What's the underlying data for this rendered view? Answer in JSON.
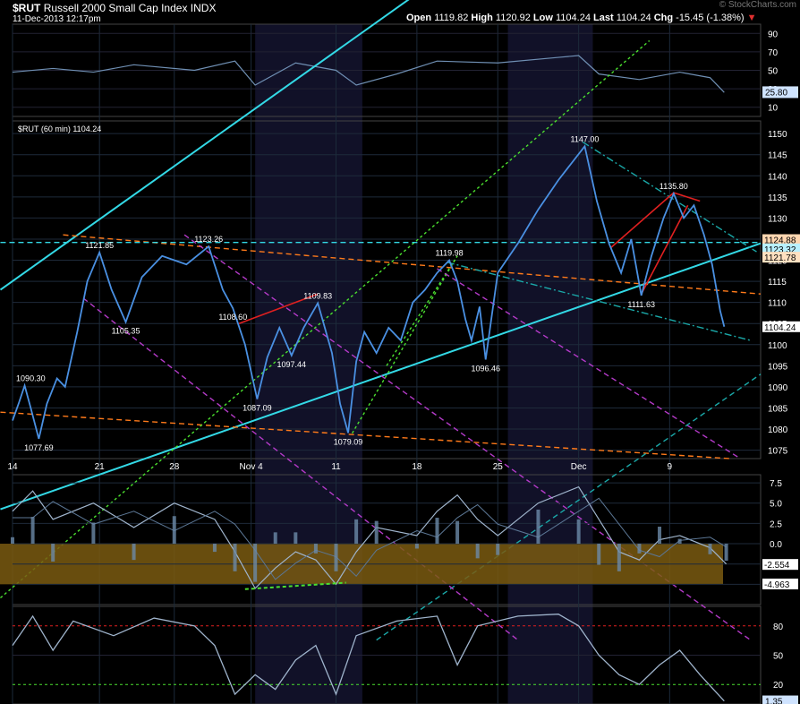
{
  "header": {
    "symbol": "$RUT",
    "name": "Russell 2000 Small Cap Index",
    "exchange": "INDX",
    "datetime": "11-Dec-2013 12:17pm",
    "open_label": "Open",
    "open": "1119.82",
    "high_label": "High",
    "high": "1120.92",
    "low_label": "Low",
    "low": "1104.24",
    "last_label": "Last",
    "last": "1104.24",
    "chg_label": "Chg",
    "chg": "-15.45 (-1.38%)",
    "chg_arrow": "▼",
    "watermark": "© StockCharts.com"
  },
  "colors": {
    "price": "#4a90e2",
    "indicator": "#6f8fb3",
    "cyan": "#33d9e6",
    "orange": "#ff7a1a",
    "green_dotted": "#4be02f",
    "magenta": "#b43ac8",
    "red": "#e02020",
    "teal": "#1aa8a8",
    "overbought_fill": "#7a5a10",
    "shade": "#111128"
  },
  "chart_data": [
    {
      "panel": "top-indicator",
      "type": "line",
      "y_ticks": [
        90,
        70,
        50,
        30,
        10
      ],
      "ylim": [
        0,
        100
      ],
      "last_value": "25.80"
    },
    {
      "panel": "price",
      "type": "line",
      "legend": "$RUT (60 min) 1104.24",
      "x_ticks": [
        "14",
        "21",
        "28",
        "Nov 4",
        "11",
        "18",
        "25",
        "Dec",
        "9"
      ],
      "y_ticks": [
        1150,
        1145,
        1140,
        1135,
        1130,
        1125,
        1120,
        1115,
        1110,
        1105,
        1100,
        1095,
        1090,
        1085,
        1080,
        1075
      ],
      "ylim": [
        1073,
        1153
      ],
      "price_series": [
        [
          0,
          1082
        ],
        [
          0.3,
          1086
        ],
        [
          0.6,
          1090.3
        ],
        [
          0.9,
          1085
        ],
        [
          1.3,
          1077.69
        ],
        [
          1.7,
          1086
        ],
        [
          2.2,
          1092
        ],
        [
          2.6,
          1090
        ],
        [
          3.2,
          1103
        ],
        [
          3.7,
          1115
        ],
        [
          4.3,
          1121.85
        ],
        [
          4.9,
          1113
        ],
        [
          5.6,
          1105.35
        ],
        [
          6.4,
          1116
        ],
        [
          7.4,
          1121
        ],
        [
          8.6,
          1119
        ],
        [
          9.7,
          1123.26
        ],
        [
          10.4,
          1113
        ],
        [
          10.9,
          1108.6
        ],
        [
          11.5,
          1100
        ],
        [
          12.1,
          1087.09
        ],
        [
          12.6,
          1097
        ],
        [
          13.2,
          1104
        ],
        [
          13.8,
          1097.44
        ],
        [
          14.4,
          1104
        ],
        [
          15.1,
          1109.83
        ],
        [
          15.8,
          1098
        ],
        [
          16.2,
          1086
        ],
        [
          16.6,
          1079.09
        ],
        [
          17.0,
          1096
        ],
        [
          17.4,
          1103
        ],
        [
          18.0,
          1098
        ],
        [
          18.6,
          1104
        ],
        [
          19.2,
          1101
        ],
        [
          19.8,
          1110
        ],
        [
          20.4,
          1113
        ],
        [
          21.0,
          1117
        ],
        [
          21.6,
          1119.98
        ],
        [
          22.0,
          1115
        ],
        [
          22.4,
          1106
        ],
        [
          22.7,
          1101
        ],
        [
          23.1,
          1109
        ],
        [
          23.4,
          1096.46
        ],
        [
          24.0,
          1117
        ],
        [
          25.0,
          1124
        ],
        [
          26.0,
          1132
        ],
        [
          27.0,
          1139
        ],
        [
          28.3,
          1147.0
        ],
        [
          28.9,
          1134
        ],
        [
          29.5,
          1124
        ],
        [
          30.1,
          1117
        ],
        [
          30.6,
          1125
        ],
        [
          31.1,
          1111.63
        ],
        [
          31.6,
          1121
        ],
        [
          32.2,
          1130
        ],
        [
          32.7,
          1135.8
        ],
        [
          33.2,
          1130
        ],
        [
          33.7,
          1133
        ],
        [
          34.2,
          1126
        ],
        [
          34.6,
          1119
        ],
        [
          35.0,
          1108
        ],
        [
          35.2,
          1104.24
        ]
      ],
      "labels": [
        {
          "x": 0.9,
          "y": 1090.3,
          "text": "1090.30"
        },
        {
          "x": 1.3,
          "y": 1077.69,
          "text": "1077.69"
        },
        {
          "x": 4.3,
          "y": 1121.85,
          "text": "1121.85"
        },
        {
          "x": 5.6,
          "y": 1105.35,
          "text": "1105.35"
        },
        {
          "x": 9.7,
          "y": 1123.26,
          "text": "1123.26"
        },
        {
          "x": 10.9,
          "y": 1108.6,
          "text": "1108.60"
        },
        {
          "x": 12.1,
          "y": 1087.09,
          "text": "1087.09"
        },
        {
          "x": 13.8,
          "y": 1097.44,
          "text": "1097.44"
        },
        {
          "x": 15.1,
          "y": 1109.83,
          "text": "1109.83"
        },
        {
          "x": 16.6,
          "y": 1079.09,
          "text": "1079.09"
        },
        {
          "x": 21.6,
          "y": 1119.98,
          "text": "1119.98"
        },
        {
          "x": 23.4,
          "y": 1096.46,
          "text": "1096.46"
        },
        {
          "x": 28.3,
          "y": 1147.0,
          "text": "1147.00"
        },
        {
          "x": 31.1,
          "y": 1111.63,
          "text": "1111.63"
        },
        {
          "x": 32.7,
          "y": 1135.8,
          "text": "1135.80"
        }
      ],
      "axis_badges": [
        "1124.88",
        "1123.32",
        "1121.78",
        "1104.24"
      ],
      "trend_lines": [
        {
          "color": "cyan",
          "style": "solid",
          "from": [
            -0.6,
            1113
          ],
          "to": [
            27.0,
            1207
          ]
        },
        {
          "color": "cyan",
          "style": "solid",
          "from": [
            -0.6,
            1061
          ],
          "to": [
            37.0,
            1124
          ]
        },
        {
          "color": "orange",
          "style": "dashed",
          "from": [
            2.5,
            1126
          ],
          "to": [
            37.0,
            1112
          ]
        },
        {
          "color": "orange",
          "style": "dashed",
          "from": [
            -0.6,
            1084
          ],
          "to": [
            35.5,
            1073
          ]
        },
        {
          "color": "green_dotted",
          "style": "dotted",
          "from": [
            -0.6,
            1040
          ],
          "to": [
            31.5,
            1172
          ]
        },
        {
          "color": "green_dotted",
          "style": "dotted",
          "from": [
            16.8,
            1079
          ],
          "to": [
            22.0,
            1121
          ]
        },
        {
          "color": "green_dotted",
          "style": "dotted",
          "from": [
            18.5,
            1095
          ],
          "to": [
            22.0,
            1121
          ]
        },
        {
          "color": "teal",
          "style": "dashdot",
          "from": [
            21.5,
            1119.5
          ],
          "to": [
            36.5,
            1101
          ]
        },
        {
          "color": "teal",
          "style": "dashdot",
          "from": [
            28.2,
            1148
          ],
          "to": [
            36.8,
            1122
          ]
        },
        {
          "color": "teal",
          "style": "dashed",
          "from": [
            18.0,
            1030
          ],
          "to": [
            37.0,
            1093
          ]
        },
        {
          "color": "magenta",
          "style": "dashed",
          "from": [
            8.5,
            1126
          ],
          "to": [
            36.5,
            1030
          ]
        },
        {
          "color": "magenta",
          "style": "dashed",
          "from": [
            3.5,
            1111
          ],
          "to": [
            25.0,
            1030
          ]
        },
        {
          "color": "magenta",
          "style": "dashed",
          "from": [
            21.0,
            1118
          ],
          "to": [
            36.0,
            1073
          ]
        },
        {
          "color": "cyan",
          "style": "dashed",
          "from": [
            -0.6,
            1124.2
          ],
          "to": [
            37.0,
            1124.2
          ]
        }
      ],
      "red_marks": [
        {
          "from": [
            11.2,
            1105
          ],
          "to": [
            15.1,
            1112
          ]
        },
        {
          "from": [
            29.6,
            1123
          ],
          "to": [
            32.7,
            1136
          ]
        },
        {
          "from": [
            32.7,
            1136
          ],
          "to": [
            34.0,
            1134
          ]
        },
        {
          "from": [
            31.1,
            1112
          ],
          "to": [
            33.4,
            1133
          ]
        }
      ]
    },
    {
      "panel": "macd",
      "type": "line",
      "y_ticks": [
        7.5,
        5.0,
        2.5,
        0.0,
        -2.5,
        -5.0
      ],
      "ylim": [
        -7.5,
        8.5
      ],
      "badges": [
        "-2.554",
        "-4.963"
      ]
    },
    {
      "panel": "stochastic",
      "type": "line",
      "y_ticks": [
        80,
        50,
        20
      ],
      "ylim": [
        0,
        100
      ],
      "last_value": "1.35"
    }
  ]
}
